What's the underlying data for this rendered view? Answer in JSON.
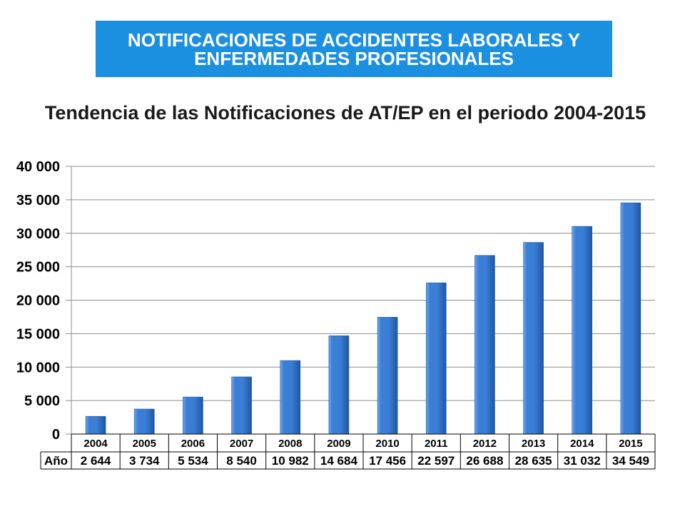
{
  "header": {
    "line1": "NOTIFICACIONES DE ACCIDENTES LABORALES Y",
    "line2": "ENFERMEDADES PROFESIONALES"
  },
  "colors": {
    "header_bg": "#1b8fe0",
    "header_text": "#ffffff",
    "title_text": "#1a1a1a",
    "bar_light": "#6ea7ee",
    "bar": "#3a7fd5",
    "bar_dark": "#1f56a3",
    "gridline": "#8c8c8c",
    "table_border": "#000000"
  },
  "chart_data": {
    "type": "bar",
    "title": "Tendencia de las Notificaciones de AT/EP en el periodo 2004-2015",
    "categories": [
      "2004",
      "2005",
      "2006",
      "2007",
      "2008",
      "2009",
      "2010",
      "2011",
      "2012",
      "2013",
      "2014",
      "2015"
    ],
    "series": [
      {
        "name": "Año",
        "values": [
          2644,
          3734,
          5534,
          8540,
          10982,
          14684,
          17456,
          22597,
          26688,
          28635,
          31032,
          34549
        ],
        "value_labels": [
          "2 644",
          "3 734",
          "5 534",
          "8 540",
          "10 982",
          "14 684",
          "17 456",
          "22 597",
          "26 688",
          "28 635",
          "31 032",
          "34 549"
        ]
      }
    ],
    "ylim": [
      0,
      40000
    ],
    "yticks": [
      0,
      5000,
      10000,
      15000,
      20000,
      25000,
      30000,
      35000,
      40000
    ],
    "ytick_labels": [
      "0",
      "5 000",
      "10 000",
      "15 000",
      "20 000",
      "25 000",
      "30 000",
      "35 000",
      "40 000"
    ],
    "grid": true,
    "data_table": true
  }
}
